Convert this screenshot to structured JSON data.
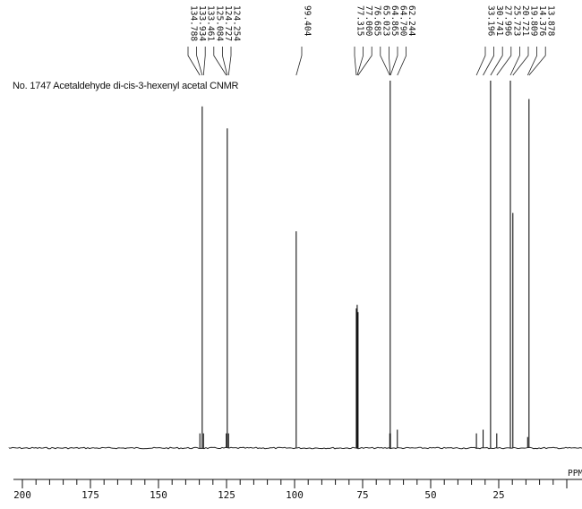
{
  "title": "No. 1747 Acetaldehyde di-cis-3-hexenyl acetal CNMR",
  "chart_data": {
    "type": "line",
    "xlabel": "PPM",
    "xlim": [
      200,
      0
    ],
    "x_ticks": [
      200,
      175,
      150,
      125,
      100,
      75,
      50,
      25
    ],
    "peak_labels": [
      "134.788",
      "133.934",
      "133.461",
      "125.084",
      "124.727",
      "124.254",
      "99.404",
      "77.315",
      "77.000",
      "76.685",
      "65.023",
      "64.865",
      "64.790",
      "62.244",
      "33.196",
      "30.741",
      "27.996",
      "25.723",
      "20.721",
      "19.809",
      "14.376",
      "13.878"
    ],
    "peaks": [
      {
        "ppm": 134.788,
        "height": 0.04
      },
      {
        "ppm": 133.934,
        "height": 0.93
      },
      {
        "ppm": 133.461,
        "height": 0.04
      },
      {
        "ppm": 125.084,
        "height": 0.04
      },
      {
        "ppm": 124.727,
        "height": 0.87
      },
      {
        "ppm": 124.254,
        "height": 0.04
      },
      {
        "ppm": 99.404,
        "height": 0.59
      },
      {
        "ppm": 77.315,
        "height": 0.38
      },
      {
        "ppm": 77.0,
        "height": 0.39
      },
      {
        "ppm": 76.685,
        "height": 0.37
      },
      {
        "ppm": 65.023,
        "height": 0.04
      },
      {
        "ppm": 64.865,
        "height": 1.0
      },
      {
        "ppm": 64.79,
        "height": 0.04
      },
      {
        "ppm": 62.244,
        "height": 0.05
      },
      {
        "ppm": 33.196,
        "height": 0.04
      },
      {
        "ppm": 30.741,
        "height": 0.05
      },
      {
        "ppm": 27.996,
        "height": 1.0
      },
      {
        "ppm": 25.723,
        "height": 0.04
      },
      {
        "ppm": 20.721,
        "height": 1.0
      },
      {
        "ppm": 19.809,
        "height": 0.64
      },
      {
        "ppm": 14.376,
        "height": 0.03
      },
      {
        "ppm": 13.878,
        "height": 0.95
      }
    ]
  }
}
